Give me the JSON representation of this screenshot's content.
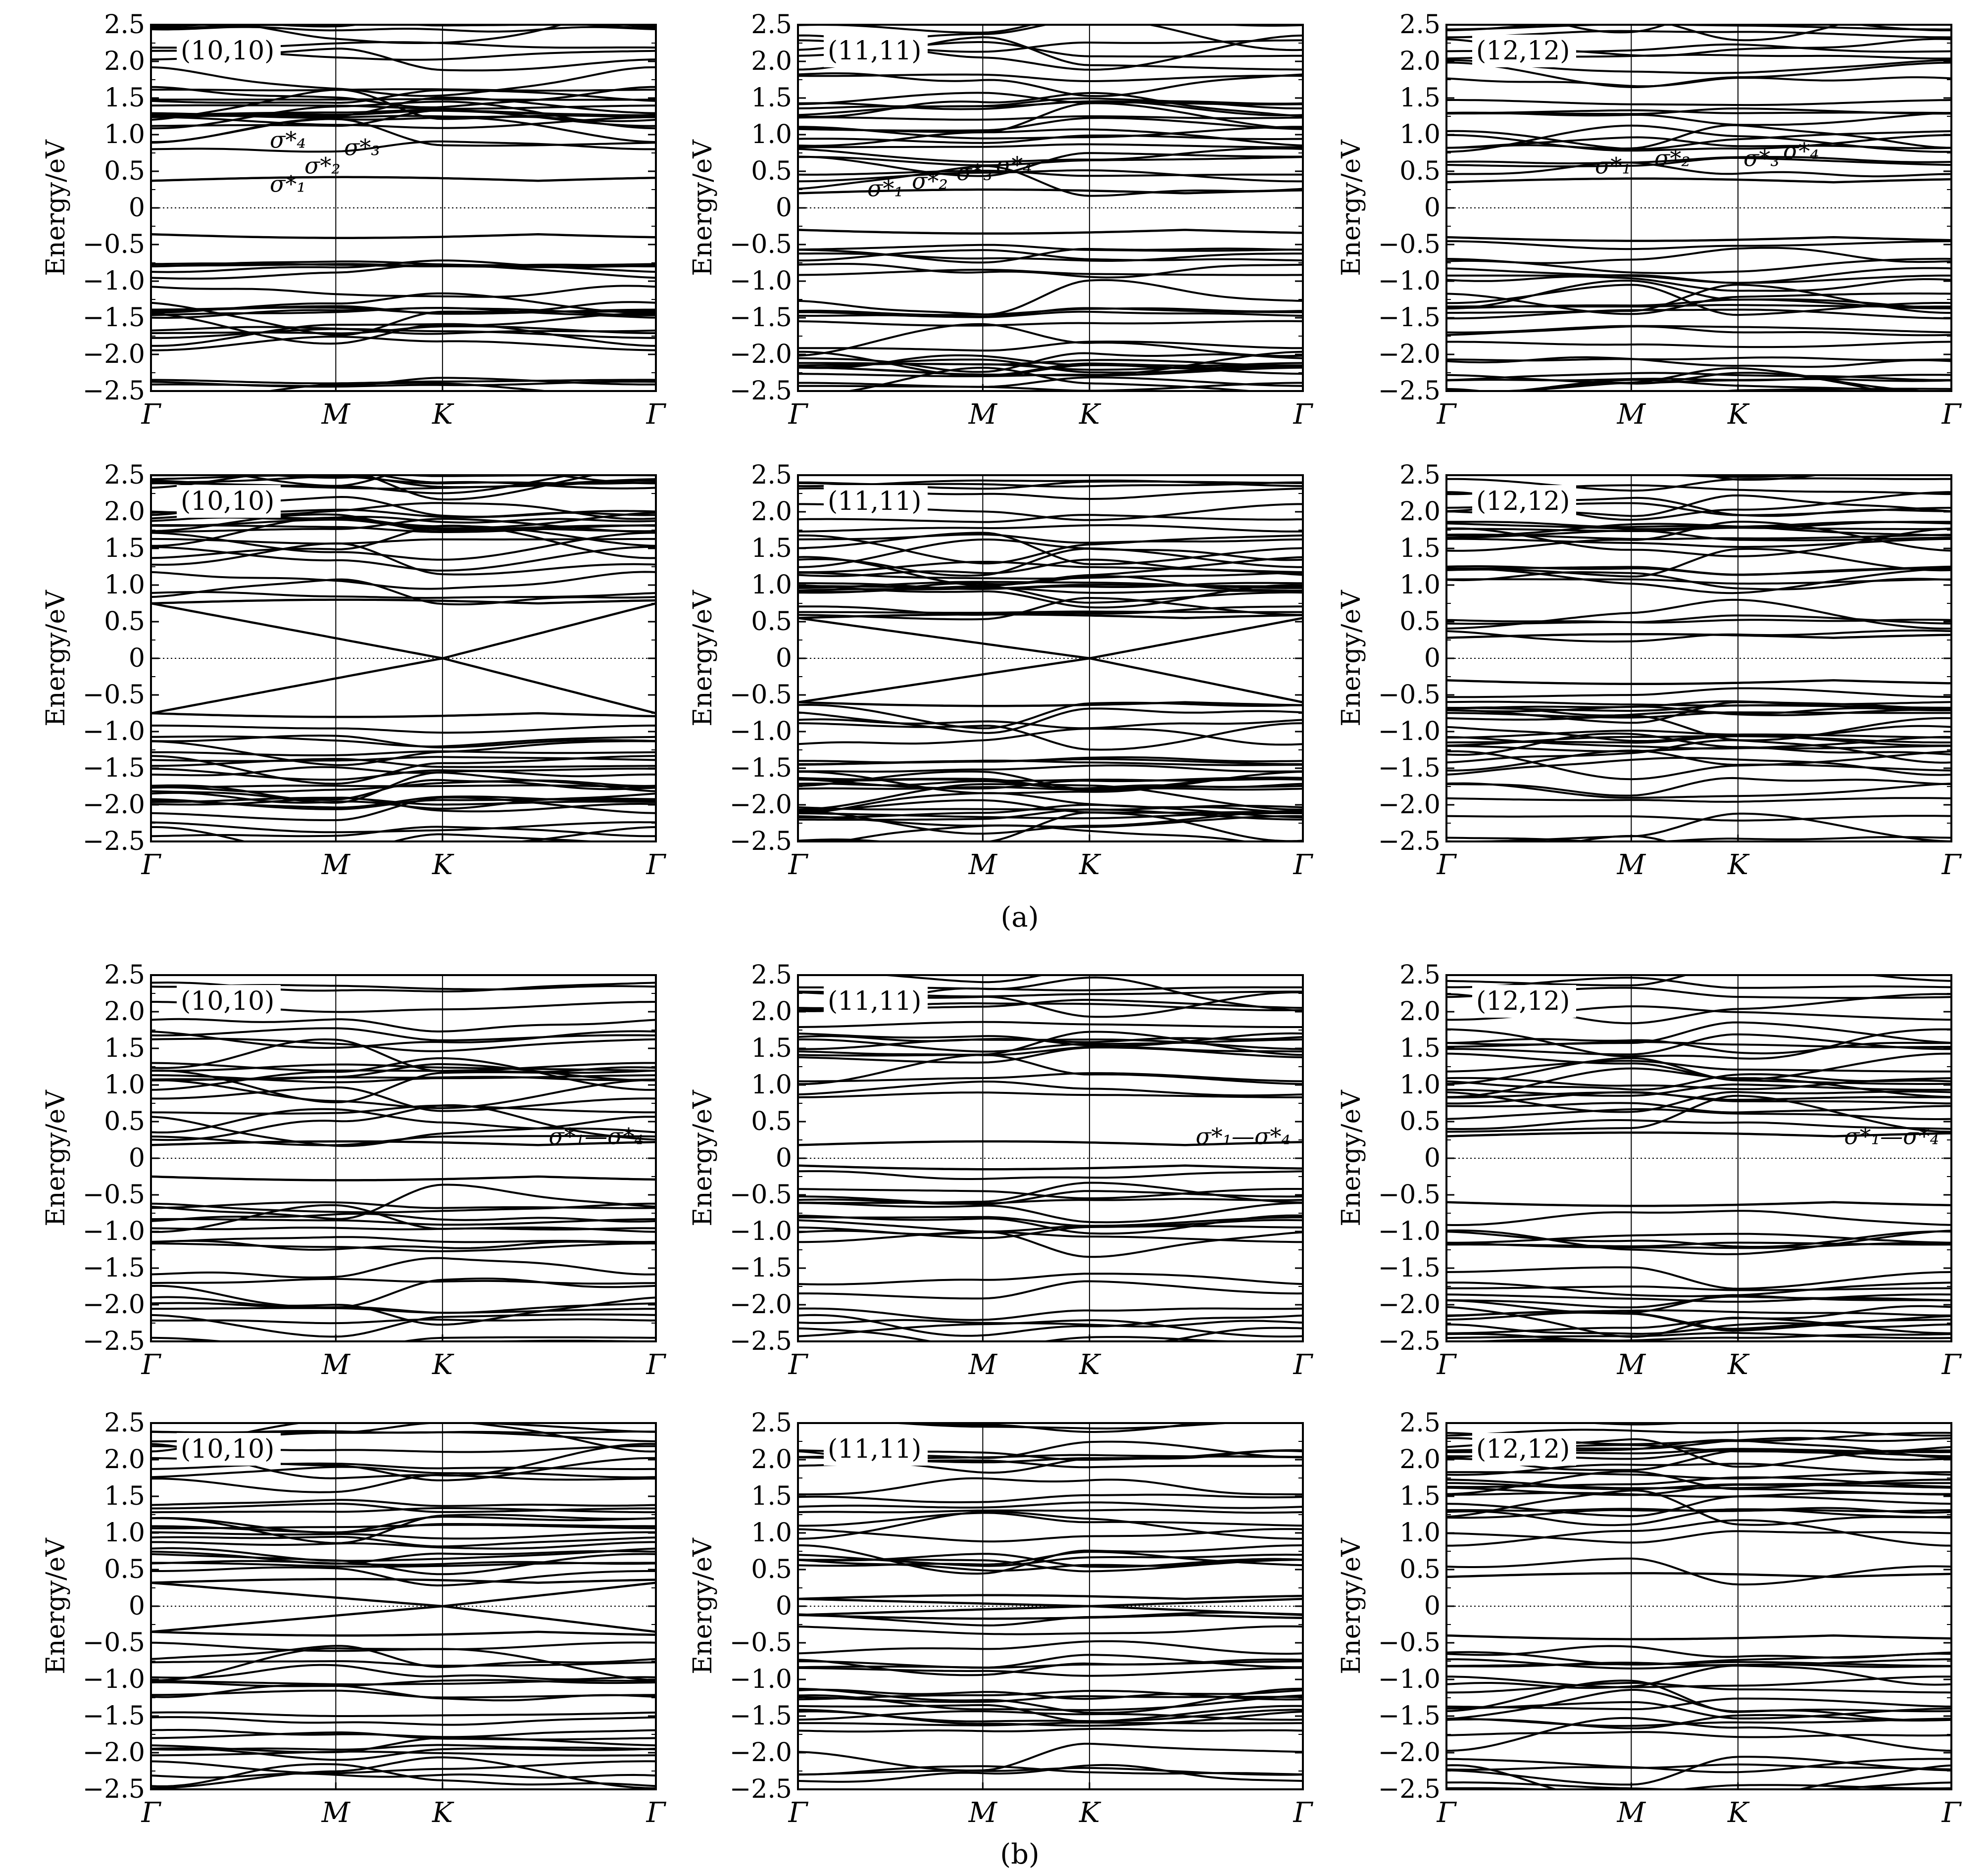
{
  "figure": {
    "captions": [
      "(a)",
      "(b)"
    ]
  },
  "chart_data": [
    {
      "type": "line",
      "group": "(a)",
      "label": "(10,10)",
      "ylabel": "Energy/eV",
      "ylim": [
        -2.5,
        2.5
      ],
      "yticks": [
        "2.5",
        "2.0",
        "1.5",
        "1.0",
        "0.5",
        "0",
        "−0.5",
        "−1.0",
        "−1.5",
        "−2.0",
        "−2.5"
      ],
      "xticks": [
        "Γ",
        "M",
        "K",
        "Γ"
      ],
      "kpath": [
        0,
        1,
        1.5774,
        2.7321
      ],
      "fermi_level": 0,
      "gap": [
        -0.36,
        0.37
      ],
      "annotation": "σ*₄ σ*₃ σ*₂ σ*₁",
      "annotation_parts": [
        "σ*₄",
        "σ*₃",
        "σ*₂",
        "σ*₁"
      ]
    },
    {
      "type": "line",
      "group": "(a)",
      "label": "(11,11)",
      "ylabel": "Energy/eV",
      "ylim": [
        -2.5,
        2.5
      ],
      "yticks": [
        "2.5",
        "2.0",
        "1.5",
        "1.0",
        "0.5",
        "0",
        "−0.5",
        "−1.0",
        "−1.5",
        "−2.0",
        "−2.5"
      ],
      "xticks": [
        "Γ",
        "M",
        "K",
        "Γ"
      ],
      "kpath": [
        0,
        1,
        1.5774,
        2.7321
      ],
      "fermi_level": 0,
      "gap": [
        -0.3,
        0.2
      ],
      "annotation": "σ*₁ σ*₂ σ*₃ σ*₄",
      "annotation_parts": [
        "σ*₁",
        "σ*₂",
        "σ*₃",
        "σ*₄"
      ]
    },
    {
      "type": "line",
      "group": "(a)",
      "label": "(12,12)",
      "ylabel": "Energy/eV",
      "ylim": [
        -2.5,
        2.5
      ],
      "yticks": [
        "2.5",
        "2.0",
        "1.5",
        "1.0",
        "0.5",
        "0",
        "−0.5",
        "−1.0",
        "−1.5",
        "−2.0",
        "−2.5"
      ],
      "xticks": [
        "Γ",
        "M",
        "K",
        "Γ"
      ],
      "kpath": [
        0,
        1,
        1.5774,
        2.7321
      ],
      "fermi_level": 0,
      "gap": [
        -0.4,
        0.35
      ],
      "annotation": "σ*₁ σ*₂ σ*₃ σ*₄",
      "annotation_parts": [
        "σ*₁",
        "σ*₂",
        "σ*₃",
        "σ*₄"
      ]
    },
    {
      "type": "line",
      "group": "(a)",
      "label": "(10,10)",
      "ylabel": "Energy/eV",
      "ylim": [
        -2.5,
        2.5
      ],
      "yticks": [
        "2.5",
        "2.0",
        "1.5",
        "1.0",
        "0.5",
        "0",
        "−0.5",
        "−1.0",
        "−1.5",
        "−2.0",
        "−2.5"
      ],
      "xticks": [
        "Γ",
        "M",
        "K",
        "Γ"
      ],
      "kpath": [
        0,
        1,
        1.5774,
        2.7321
      ],
      "fermi_level": 0,
      "dirac": true,
      "gap": [
        -0.75,
        0.75
      ]
    },
    {
      "type": "line",
      "group": "(a)",
      "label": "(11,11)",
      "ylabel": "Energy/eV",
      "ylim": [
        -2.5,
        2.5
      ],
      "yticks": [
        "2.5",
        "2.0",
        "1.5",
        "1.0",
        "0.5",
        "0",
        "−0.5",
        "−1.0",
        "−1.5",
        "−2.0",
        "−2.5"
      ],
      "xticks": [
        "Γ",
        "M",
        "K",
        "Γ"
      ],
      "kpath": [
        0,
        1,
        1.5774,
        2.7321
      ],
      "fermi_level": 0,
      "dirac": true,
      "gap": [
        -0.6,
        0.55
      ]
    },
    {
      "type": "line",
      "group": "(a)",
      "label": "(12,12)",
      "ylabel": "Energy/eV",
      "ylim": [
        -2.5,
        2.5
      ],
      "yticks": [
        "2.5",
        "2.0",
        "1.5",
        "1.0",
        "0.5",
        "0",
        "−0.5",
        "−1.0",
        "−1.5",
        "−2.0",
        "−2.5"
      ],
      "xticks": [
        "Γ",
        "M",
        "K",
        "Γ"
      ],
      "kpath": [
        0,
        1,
        1.5774,
        2.7321
      ],
      "fermi_level": 0,
      "gap": [
        -0.3,
        0.28
      ]
    },
    {
      "type": "line",
      "group": "(b)",
      "label": "(10,10)",
      "ylabel": "Energy/eV",
      "ylim": [
        -2.5,
        2.5
      ],
      "yticks": [
        "2.5",
        "2.0",
        "1.5",
        "1.0",
        "0.5",
        "0",
        "−0.5",
        "−1.0",
        "−1.5",
        "−2.0",
        "−2.5"
      ],
      "xticks": [
        "Γ",
        "M",
        "K",
        "Γ"
      ],
      "kpath": [
        0,
        1,
        1.5774,
        2.7321
      ],
      "fermi_level": 0,
      "gap": [
        -0.25,
        0.18
      ],
      "annotation": "σ*₁—σ*₄",
      "annotation_parts": [
        "σ*₁—σ*₄"
      ]
    },
    {
      "type": "line",
      "group": "(b)",
      "label": "(11,11)",
      "ylabel": "Energy/eV",
      "ylim": [
        -2.5,
        2.5
      ],
      "yticks": [
        "2.5",
        "2.0",
        "1.5",
        "1.0",
        "0.5",
        "0",
        "−0.5",
        "−1.0",
        "−1.5",
        "−2.0",
        "−2.5"
      ],
      "xticks": [
        "Γ",
        "M",
        "K",
        "Γ"
      ],
      "kpath": [
        0,
        1,
        1.5774,
        2.7321
      ],
      "fermi_level": 0,
      "gap": [
        -0.1,
        0.18
      ],
      "annotation": "σ*₁—σ*₄",
      "annotation_parts": [
        "σ*₁—σ*₄"
      ]
    },
    {
      "type": "line",
      "group": "(b)",
      "label": "(12,12)",
      "ylabel": "Energy/eV",
      "ylim": [
        -2.5,
        2.5
      ],
      "yticks": [
        "2.5",
        "2.0",
        "1.5",
        "1.0",
        "0.5",
        "0",
        "−0.5",
        "−1.0",
        "−1.5",
        "−2.0",
        "−2.5"
      ],
      "xticks": [
        "Γ",
        "M",
        "K",
        "Γ"
      ],
      "kpath": [
        0,
        1,
        1.5774,
        2.7321
      ],
      "fermi_level": 0,
      "gap": [
        -0.6,
        0.3
      ],
      "annotation": "σ*₁—σ*₄",
      "annotation_parts": [
        "σ*₁—σ*₄"
      ]
    },
    {
      "type": "line",
      "group": "(b)",
      "label": "(10,10)",
      "ylabel": "Energy/eV",
      "ylim": [
        -2.5,
        2.5
      ],
      "yticks": [
        "2.5",
        "2.0",
        "1.5",
        "1.0",
        "0.5",
        "0",
        "−0.5",
        "−1.0",
        "−1.5",
        "−2.0",
        "−2.5"
      ],
      "xticks": [
        "Γ",
        "M",
        "K",
        "Γ"
      ],
      "kpath": [
        0,
        1,
        1.5774,
        2.7321
      ],
      "fermi_level": 0,
      "dirac": true,
      "gap": [
        -0.35,
        0.32
      ]
    },
    {
      "type": "line",
      "group": "(b)",
      "label": "(11,11)",
      "ylabel": "Energy/eV",
      "ylim": [
        -2.5,
        2.5
      ],
      "yticks": [
        "2.5",
        "2.0",
        "1.5",
        "1.0",
        "0.5",
        "0",
        "−0.5",
        "−1.0",
        "−1.5",
        "−2.0",
        "−2.5"
      ],
      "xticks": [
        "Γ",
        "M",
        "K",
        "Γ"
      ],
      "kpath": [
        0,
        1,
        1.5774,
        2.7321
      ],
      "fermi_level": 0,
      "dirac": true,
      "gap": [
        -0.12,
        0.1
      ]
    },
    {
      "type": "line",
      "group": "(b)",
      "label": "(12,12)",
      "ylabel": "Energy/eV",
      "ylim": [
        -2.5,
        2.5
      ],
      "yticks": [
        "2.5",
        "2.0",
        "1.5",
        "1.0",
        "0.5",
        "0",
        "−0.5",
        "−1.0",
        "−1.5",
        "−2.0",
        "−2.5"
      ],
      "xticks": [
        "Γ",
        "M",
        "K",
        "Γ"
      ],
      "kpath": [
        0,
        1,
        1.5774,
        2.7321
      ],
      "fermi_level": 0,
      "gap": [
        -0.4,
        0.4
      ]
    }
  ]
}
